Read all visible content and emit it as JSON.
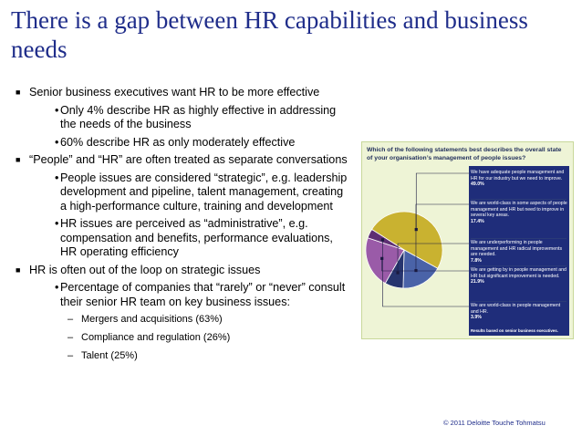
{
  "slide": {
    "title": "There is a gap between HR capabilities and business needs",
    "copyright": "© 2011 Deloitte Touche Tohmatsu"
  },
  "bullets": [
    {
      "level": 1,
      "marker": "■",
      "text": "Senior business executives want HR to be more effective"
    },
    {
      "level": 2,
      "marker": "•",
      "text": "Only 4% describe HR as highly effective in addressing the needs of the business"
    },
    {
      "level": 2,
      "marker": "•",
      "text": "60% describe HR as only moderately effective"
    },
    {
      "level": 1,
      "marker": "■",
      "text": "“People” and “HR” are often treated as separate conversations"
    },
    {
      "level": 2,
      "marker": "•",
      "text": "People issues are considered “strategic”, e.g. leadership development and pipeline, talent management, creating a high-performance culture, training and development"
    },
    {
      "level": 2,
      "marker": "•",
      "text": "HR issues are perceived as “administrative”, e.g. compensation and benefits, performance evaluations, HR operating efficiency"
    },
    {
      "level": 1,
      "marker": "■",
      "text": "HR is often out of the loop on strategic issues"
    },
    {
      "level": 2,
      "marker": "•",
      "text": "Percentage of companies that “rarely” or “never” consult their senior HR team on key business issues:"
    },
    {
      "level": 3,
      "marker": "–",
      "text": "Mergers and acquisitions (63%)"
    },
    {
      "level": 3,
      "marker": "–",
      "text": "Compliance and regulation (26%)"
    },
    {
      "level": 3,
      "marker": "–",
      "text": "Talent (25%)"
    }
  ],
  "chart_data": {
    "type": "pie",
    "title": "Which of the following statements best describes the overall state of your organisation’s management of people issues?",
    "footnote": "Results based on senior business executives.",
    "slices": [
      {
        "label": "We have adequate people management and HR for our industry but we need to improve.",
        "value": 49.0,
        "value_label": "49.0%",
        "color": "#c9b230"
      },
      {
        "label": "We are world-class in some aspects of people management and HR but need to improve in several key areas.",
        "value": 17.4,
        "value_label": "17.4%",
        "color": "#4a63a8"
      },
      {
        "label": "We are underperforming in people management and HR radical improvements are needed.",
        "value": 7.8,
        "value_label": "7.8%",
        "color": "#27356e"
      },
      {
        "label": "We are getting by in people management and HR but significant improvement is needed.",
        "value": 21.9,
        "value_label": "21.9%",
        "color": "#9a5ba8"
      },
      {
        "label": "We are world-class in people management and HR.",
        "value": 3.9,
        "value_label": "3.9%",
        "color": "#5e2f73"
      }
    ],
    "legend_background": "#1f2d7a"
  }
}
